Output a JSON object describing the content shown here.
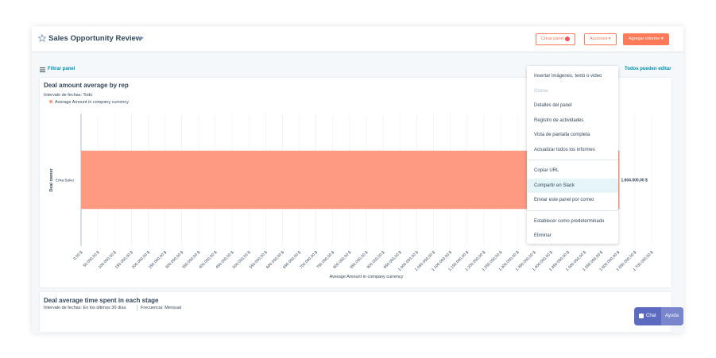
{
  "header": {
    "title": "Sales Opportunity Review",
    "buttons": [
      "Crear panel",
      "Acciones",
      "Agregar informe"
    ]
  },
  "toolbar": {
    "filter": "Filtrar panel",
    "sharing": "Todos pueden editar"
  },
  "chart_data": {
    "type": "bar",
    "orientation": "horizontal",
    "title": "Deal amount average by rep",
    "subtitle": "Intervalo de fechas: Todo",
    "y_label": "Deal owner",
    "x_label": "Average Amount in company currency",
    "categories": [
      "Erika Baker"
    ],
    "series": [
      {
        "name": "Average Amount in company currency",
        "color": "#ff9a82",
        "values": [
          1604000
        ],
        "value_labels": [
          "1.604.000,00 $"
        ]
      }
    ],
    "xlim": [
      0,
      1700000
    ],
    "xticks": [
      {
        "value": 0,
        "label": "0,00 $"
      },
      {
        "value": 50000,
        "label": "50.000,00 $"
      },
      {
        "value": 100000,
        "label": "100.000,00 $"
      },
      {
        "value": 150000,
        "label": "150.000,00 $"
      },
      {
        "value": 200000,
        "label": "200.000,00 $"
      },
      {
        "value": 250000,
        "label": "250.000,00 $"
      },
      {
        "value": 300000,
        "label": "300.000,00 $"
      },
      {
        "value": 350000,
        "label": "350.000,00 $"
      },
      {
        "value": 400000,
        "label": "400.000,00 $"
      },
      {
        "value": 450000,
        "label": "450.000,00 $"
      },
      {
        "value": 500000,
        "label": "500.000,00 $"
      },
      {
        "value": 550000,
        "label": "550.000,00 $"
      },
      {
        "value": 600000,
        "label": "600.000,00 $"
      },
      {
        "value": 650000,
        "label": "650.000,00 $"
      },
      {
        "value": 700000,
        "label": "700.000,00 $"
      },
      {
        "value": 750000,
        "label": "750.000,00 $"
      },
      {
        "value": 800000,
        "label": "800.000,00 $"
      },
      {
        "value": 850000,
        "label": "850.000,00 $"
      },
      {
        "value": 900000,
        "label": "900.000,00 $"
      },
      {
        "value": 950000,
        "label": "950.000,00 $"
      },
      {
        "value": 1000000,
        "label": "1.000.000,00 $"
      },
      {
        "value": 1050000,
        "label": "1.050.000,00 $"
      },
      {
        "value": 1100000,
        "label": "1.100.000,00 $"
      },
      {
        "value": 1150000,
        "label": "1.150.000,00 $"
      },
      {
        "value": 1200000,
        "label": "1.200.000,00 $"
      },
      {
        "value": 1250000,
        "label": "1.250.000,00 $"
      },
      {
        "value": 1300000,
        "label": "1.300.000,00 $"
      },
      {
        "value": 1350000,
        "label": "1.350.000,00 $"
      },
      {
        "value": 1400000,
        "label": "1.400.000,00 $"
      },
      {
        "value": 1450000,
        "label": "1.450.000,00 $"
      },
      {
        "value": 1500000,
        "label": "1.500.000,00 $"
      },
      {
        "value": 1550000,
        "label": "1.550.000,00 $"
      },
      {
        "value": 1600000,
        "label": "1.600.000,00 $"
      },
      {
        "value": 1650000,
        "label": "1.650.000,00 $"
      },
      {
        "value": 1700000,
        "label": "1.700.000,00 $"
      }
    ],
    "grid": true
  },
  "menu": {
    "groups": [
      [
        "Insertar imágenes, texto o video",
        "Clonar",
        "Detalles del panel",
        "Registro de actividades",
        "Vista de pantalla completa",
        "Actualizar todos los informes"
      ],
      [
        "Copiar URL",
        "Compartir en Slack",
        "Enviar este panel por correo"
      ],
      [
        "Establecer como predeterminado",
        "Eliminar"
      ]
    ]
  },
  "card2": {
    "title": "Deal average time spent in each stage",
    "range": "Intervalo de fechas: En los últimos 30 días",
    "frequency": "Frecuencia: Mensual"
  },
  "chat": {
    "chat": "Chat",
    "help": "Ayuda"
  }
}
